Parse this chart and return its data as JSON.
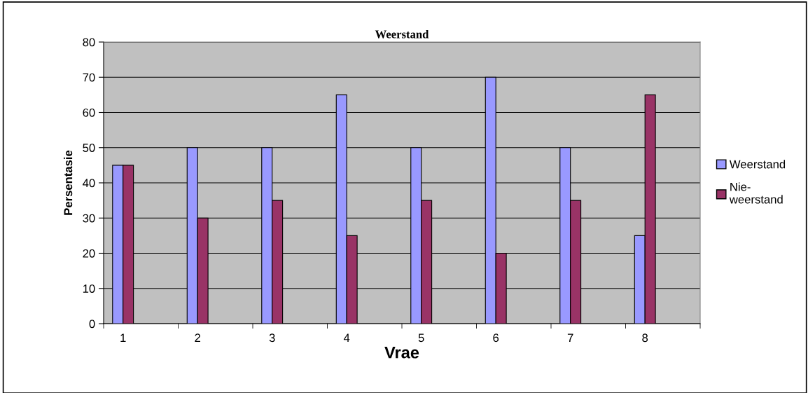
{
  "chart_data": {
    "type": "bar",
    "title": "Weerstand",
    "xlabel": "Vrae",
    "ylabel": "Persentasie",
    "categories": [
      "1",
      "2",
      "3",
      "4",
      "5",
      "6",
      "7",
      "8"
    ],
    "series": [
      {
        "name": "Weerstand",
        "color": "#9999ff",
        "values": [
          45,
          50,
          50,
          65,
          50,
          70,
          50,
          25
        ]
      },
      {
        "name": "Nie-\nweerstand",
        "color": "#993366",
        "values": [
          45,
          30,
          35,
          25,
          35,
          20,
          35,
          65
        ]
      }
    ],
    "ylim": [
      0,
      80
    ],
    "yticks": [
      0,
      10,
      20,
      30,
      40,
      50,
      60,
      70,
      80
    ],
    "grid": "y",
    "legend": "right"
  }
}
